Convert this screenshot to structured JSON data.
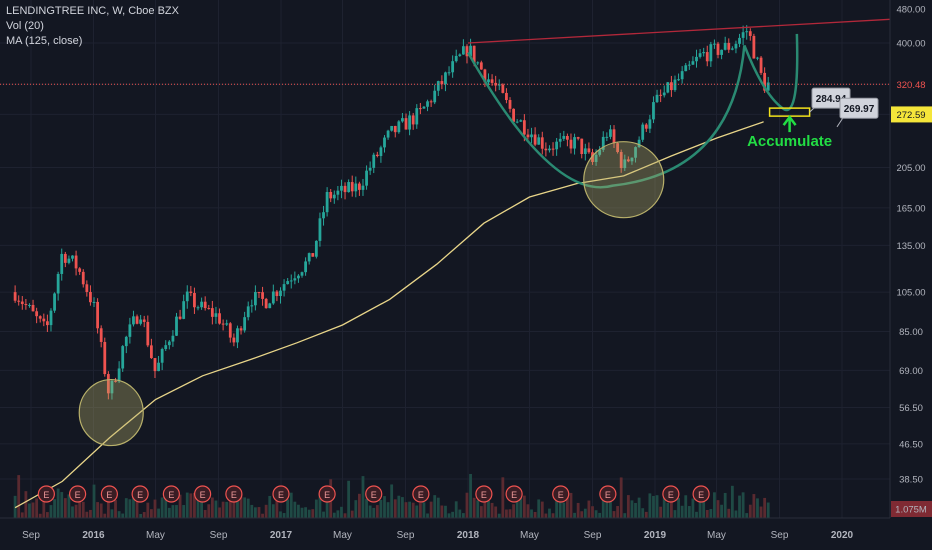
{
  "legend": {
    "symbol": "LENDINGTREE INC, W, Cboe BZX",
    "volume": "Vol (20)",
    "ma": "MA (125, close)"
  },
  "colors": {
    "background": "#131722",
    "up": "#26a69a",
    "down": "#ef5350",
    "ma": "#e8d589",
    "cup": "#2a8a72",
    "resistance": "#b2283a",
    "price_line": "#ef5350",
    "circle": "#b8b06a",
    "accumulate": "#22dd44",
    "target_box": "#f2e21b"
  },
  "chart_data": {
    "type": "candlestick",
    "y_scale": "log",
    "ylim": [
      33,
      480
    ],
    "y_ticks": [
      "480.00",
      "400.00",
      "320.48",
      "272.59",
      "205.00",
      "165.00",
      "135.00",
      "105.00",
      "85.00",
      "69.00",
      "56.50",
      "46.50",
      "38.50",
      "1.075M"
    ],
    "x_ticks": [
      "Sep",
      "2016",
      "May",
      "Sep",
      "2017",
      "May",
      "Sep",
      "2018",
      "May",
      "Sep",
      "2019",
      "May",
      "Sep",
      "2020"
    ],
    "last_price": 320.48,
    "ma_value": 272.59,
    "ma_label": "272.59",
    "last_price_label": "320.48",
    "callouts": [
      {
        "label": "284.94",
        "value": 284.94
      },
      {
        "label": "269.97",
        "value": 269.97
      }
    ],
    "annotation": "Accumulate",
    "earnings_marker": "E",
    "earnings_count": 17,
    "anchors": [
      {
        "date": "2015-08",
        "price": 105
      },
      {
        "date": "2015-10",
        "price": 85
      },
      {
        "date": "2015-11",
        "price": 130
      },
      {
        "date": "2015-12",
        "price": 120
      },
      {
        "date": "2016-01",
        "price": 98
      },
      {
        "date": "2016-02",
        "price": 60
      },
      {
        "date": "2016-03",
        "price": 80
      },
      {
        "date": "2016-04",
        "price": 96
      },
      {
        "date": "2016-05",
        "price": 68
      },
      {
        "date": "2016-06",
        "price": 85
      },
      {
        "date": "2016-07",
        "price": 102
      },
      {
        "date": "2016-08",
        "price": 96
      },
      {
        "date": "2016-09",
        "price": 92
      },
      {
        "date": "2016-10",
        "price": 80
      },
      {
        "date": "2016-11",
        "price": 102
      },
      {
        "date": "2016-12",
        "price": 100
      },
      {
        "date": "2017-02",
        "price": 118
      },
      {
        "date": "2017-03",
        "price": 125
      },
      {
        "date": "2017-04",
        "price": 175
      },
      {
        "date": "2017-06",
        "price": 185
      },
      {
        "date": "2017-08",
        "price": 245
      },
      {
        "date": "2017-10",
        "price": 275
      },
      {
        "date": "2017-12",
        "price": 350
      },
      {
        "date": "2018-01",
        "price": 390
      },
      {
        "date": "2018-02",
        "price": 340
      },
      {
        "date": "2018-03",
        "price": 310
      },
      {
        "date": "2018-04",
        "price": 270
      },
      {
        "date": "2018-06",
        "price": 230
      },
      {
        "date": "2018-08",
        "price": 235
      },
      {
        "date": "2018-09",
        "price": 210
      },
      {
        "date": "2018-10",
        "price": 250
      },
      {
        "date": "2018-11",
        "price": 205
      },
      {
        "date": "2018-12",
        "price": 240
      },
      {
        "date": "2019-01",
        "price": 290
      },
      {
        "date": "2019-03",
        "price": 340
      },
      {
        "date": "2019-04",
        "price": 375
      },
      {
        "date": "2019-06",
        "price": 395
      },
      {
        "date": "2019-07",
        "price": 430
      },
      {
        "date": "2019-08",
        "price": 320
      }
    ]
  }
}
